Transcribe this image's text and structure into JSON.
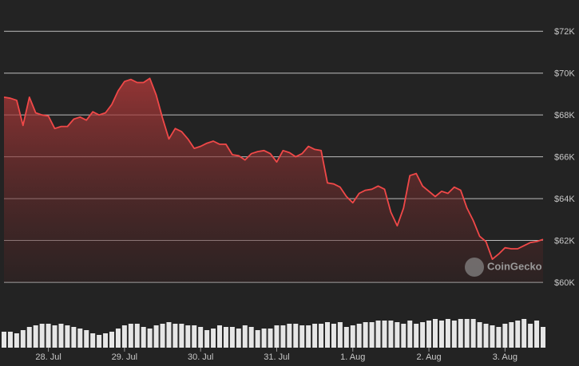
{
  "chart_data": {
    "type": "area",
    "watermark": "CoinGecko",
    "color": "#f04848",
    "volume_color": "#e6e6e6",
    "x": [
      0,
      2,
      4,
      6,
      8,
      10,
      12,
      14,
      16,
      18,
      20,
      22,
      24,
      26,
      28,
      30,
      32,
      34,
      36,
      38,
      40,
      42,
      44,
      46,
      48,
      50,
      52,
      54,
      56,
      58,
      60,
      62,
      64,
      66,
      68,
      70,
      72,
      74,
      76,
      78,
      80,
      82,
      84,
      86,
      88,
      90,
      92,
      94,
      96,
      98,
      100,
      102,
      104,
      106,
      108,
      110,
      112,
      114,
      116,
      118,
      120,
      122,
      124,
      126,
      128,
      130,
      132,
      134,
      136,
      138,
      140,
      142,
      144,
      146,
      148,
      150,
      152,
      154,
      156,
      158,
      160,
      162,
      164,
      166,
      168,
      170
    ],
    "values": [
      68.85,
      68.8,
      68.7,
      67.5,
      68.85,
      68.1,
      68.0,
      67.95,
      67.35,
      67.45,
      67.45,
      67.8,
      67.9,
      67.75,
      68.15,
      68.0,
      68.1,
      68.5,
      69.15,
      69.6,
      69.7,
      69.55,
      69.55,
      69.75,
      68.95,
      67.85,
      66.85,
      67.35,
      67.2,
      66.85,
      66.4,
      66.5,
      66.65,
      66.75,
      66.6,
      66.6,
      66.1,
      66.05,
      65.85,
      66.15,
      66.25,
      66.3,
      66.15,
      65.75,
      66.3,
      66.2,
      66.0,
      66.15,
      66.5,
      66.35,
      66.3,
      64.75,
      64.7,
      64.55,
      64.1,
      63.8,
      64.25,
      64.4,
      64.45,
      64.6,
      64.45,
      63.35,
      62.7,
      63.55,
      65.1,
      65.2,
      64.6,
      64.35,
      64.1,
      64.35,
      64.25,
      64.55,
      64.4,
      63.55,
      62.95,
      62.2,
      61.95,
      61.1,
      61.35,
      61.65,
      61.6,
      61.6,
      61.75,
      61.9,
      61.95,
      62.05
    ],
    "volume": [
      20,
      20,
      18,
      22,
      26,
      28,
      30,
      30,
      28,
      30,
      28,
      26,
      24,
      22,
      18,
      16,
      18,
      20,
      24,
      28,
      30,
      30,
      26,
      24,
      28,
      30,
      32,
      30,
      30,
      28,
      28,
      26,
      22,
      24,
      28,
      26,
      26,
      24,
      28,
      26,
      22,
      24,
      24,
      28,
      28,
      30,
      30,
      28,
      28,
      30,
      30,
      32,
      30,
      32,
      26,
      28,
      30,
      32,
      32,
      34,
      34,
      34,
      32,
      30,
      34,
      30,
      32,
      34,
      36,
      34,
      36,
      34,
      36,
      36,
      36,
      32,
      30,
      28,
      26,
      30,
      32,
      34,
      36,
      30,
      34,
      26
    ],
    "xlim": [
      0,
      170
    ],
    "xticks": [
      {
        "value": 14,
        "label": "28. Jul"
      },
      {
        "value": 38,
        "label": "29. Jul"
      },
      {
        "value": 62,
        "label": "30. Jul"
      },
      {
        "value": 86,
        "label": "31. Jul"
      },
      {
        "value": 110,
        "label": "1. Aug"
      },
      {
        "value": 134,
        "label": "2. Aug"
      },
      {
        "value": 158,
        "label": "3. Aug"
      }
    ],
    "ylim": [
      60,
      72.2
    ],
    "yticks": [
      {
        "value": 60,
        "label": "$60K"
      },
      {
        "value": 62,
        "label": "$62K"
      },
      {
        "value": 64,
        "label": "$64K"
      },
      {
        "value": 66,
        "label": "$66K"
      },
      {
        "value": 68,
        "label": "$68K"
      },
      {
        "value": 70,
        "label": "$70K"
      },
      {
        "value": 72,
        "label": "$72K"
      }
    ],
    "y2lim": [
      0,
      40
    ],
    "grid": true
  }
}
